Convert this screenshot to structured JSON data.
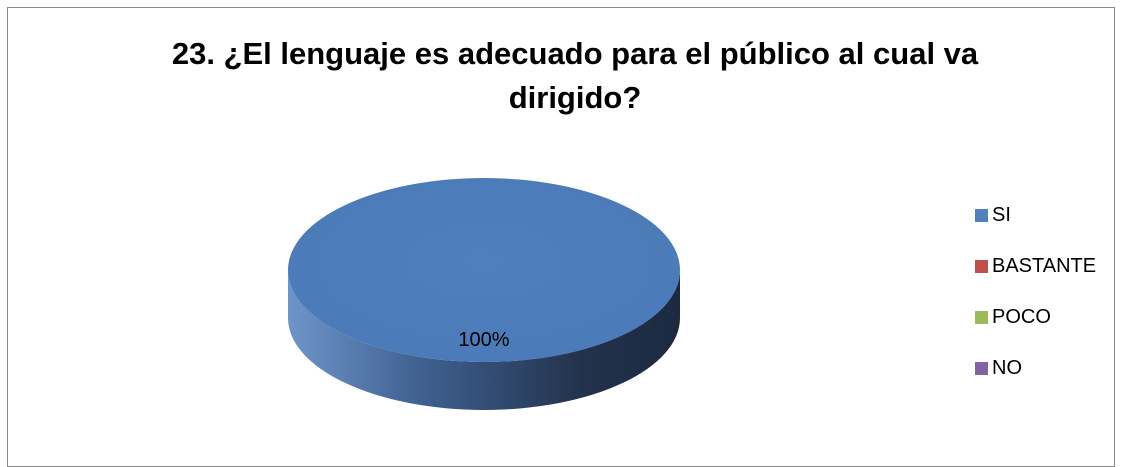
{
  "chart_data": {
    "type": "pie",
    "title": "23. ¿El lenguaje es adecuado para el público al cual va dirigido?",
    "title_lines": [
      "23. ¿El lenguaje es adecuado para el público al cual va",
      "dirigido?"
    ],
    "categories": [
      "SI",
      "BASTANTE",
      "POCO",
      "NO"
    ],
    "values": [
      100,
      0,
      0,
      0
    ],
    "data_labels": [
      "100%"
    ],
    "colors": [
      "#4F81BD",
      "#C0504D",
      "#9BBB59",
      "#8064A2"
    ],
    "legend_placement": "right",
    "style": "3d"
  }
}
